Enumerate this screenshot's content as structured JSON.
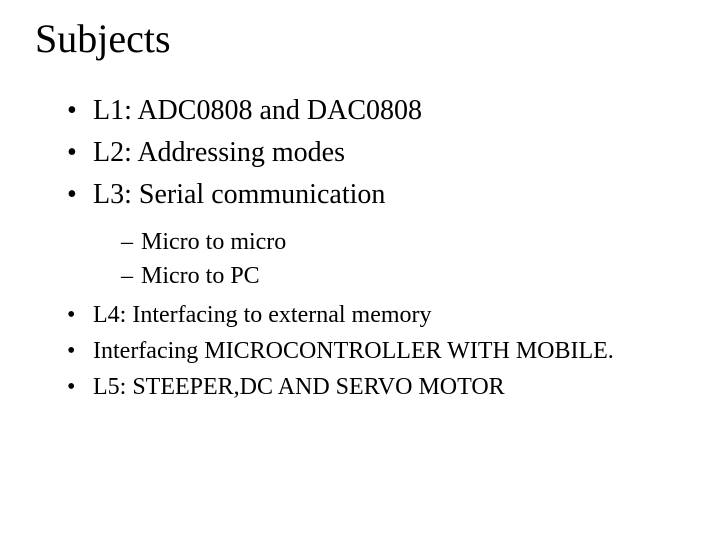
{
  "title": "Subjects",
  "items": [
    {
      "text": "L1: ADC0808 and DAC0808"
    },
    {
      "text": "L2: Addressing modes"
    },
    {
      "text": "L3: Serial communication"
    }
  ],
  "subitems": [
    {
      "text": "Micro to micro"
    },
    {
      "text": "Micro to PC"
    }
  ],
  "items2": [
    {
      "text": "L4: Interfacing to external memory"
    },
    {
      "text": "Interfacing MICROCONTROLLER WITH MOBILE."
    },
    {
      "text": "L5: STEEPER,DC AND SERVO MOTOR"
    }
  ],
  "style": {
    "background_color": "#ffffff",
    "text_color": "#000000",
    "title_fontsize": 40,
    "bullet_fontsize": 28,
    "sub_fontsize": 24,
    "small_bullet_fontsize": 24,
    "font_family": "Times New Roman"
  }
}
